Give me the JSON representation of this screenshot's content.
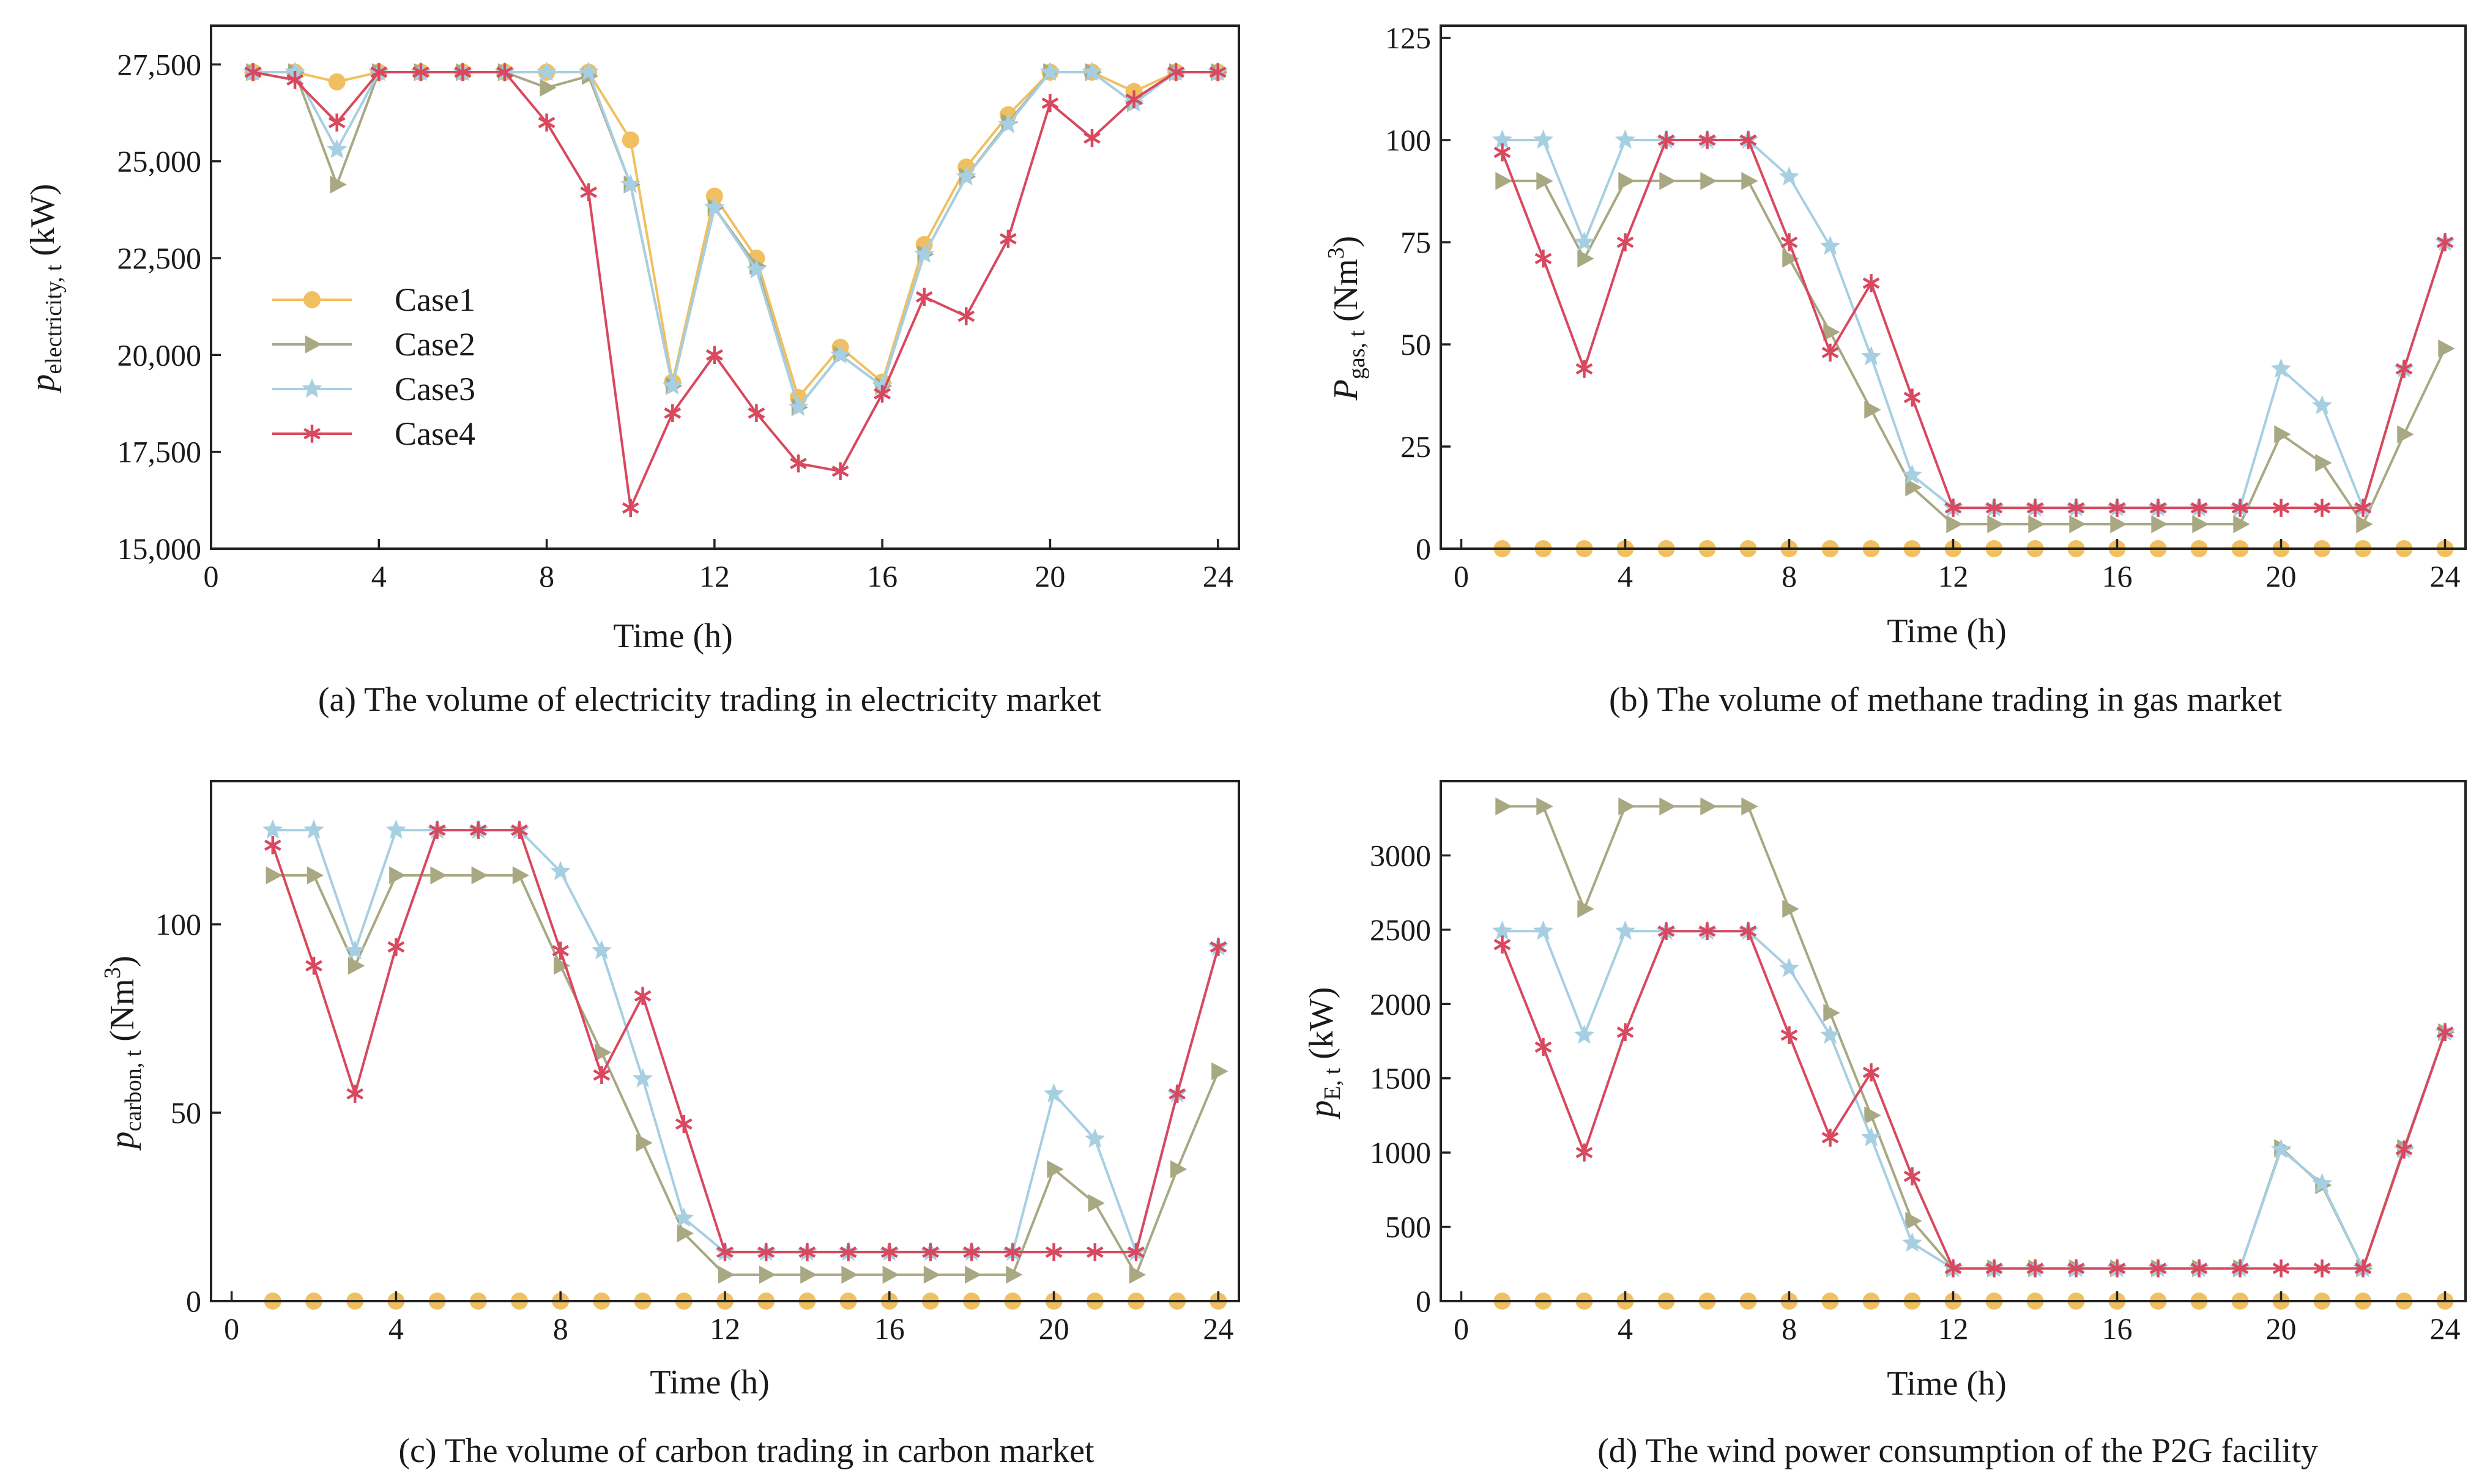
{
  "figure_domain": "Chart",
  "colors": {
    "Case1": "#f0c060",
    "Case2": "#a8a882",
    "Case3": "#a6cfe2",
    "Case4": "#d8485e"
  },
  "legend": [
    "Case1",
    "Case2",
    "Case3",
    "Case4"
  ],
  "chart_data": [
    {
      "id": "a",
      "type": "line",
      "caption": "(a)  The volume of electricity trading in electricity market",
      "xlabel": "Time  (h)",
      "ylabel": "p",
      "ylabel_sub": "electricity, t",
      "ylabel_unit": " (kW)",
      "xlim": [
        0,
        24.5
      ],
      "ylim": [
        15000,
        28500
      ],
      "xticks": [
        0,
        4,
        8,
        12,
        16,
        20,
        24
      ],
      "xtick_labels": [
        "0",
        "4",
        "8",
        "12",
        "16",
        "20",
        "24"
      ],
      "yticks": [
        15000,
        17500,
        20000,
        22500,
        25000,
        27500
      ],
      "ytick_labels": [
        "15,000",
        "17,500",
        "20,000",
        "22,500",
        "25,000",
        "27,500"
      ],
      "x": [
        1,
        2,
        3,
        4,
        5,
        6,
        7,
        8,
        9,
        10,
        11,
        12,
        13,
        14,
        15,
        16,
        17,
        18,
        19,
        20,
        21,
        22,
        23,
        24
      ],
      "series": [
        {
          "name": "Case1",
          "marker": "circle",
          "values": [
            27300,
            27300,
            27050,
            27300,
            27300,
            27300,
            27300,
            27300,
            27300,
            25550,
            19300,
            24100,
            22500,
            18900,
            20200,
            19300,
            22850,
            24850,
            26200,
            27300,
            27300,
            26800,
            27300,
            27300
          ]
        },
        {
          "name": "Case2",
          "marker": "triangle",
          "values": [
            27300,
            27300,
            24400,
            27300,
            27300,
            27300,
            27300,
            26900,
            27200,
            24400,
            19200,
            23800,
            22300,
            18650,
            20000,
            19200,
            22600,
            24600,
            26000,
            27300,
            27300,
            26500,
            27300,
            27300
          ]
        },
        {
          "name": "Case3",
          "marker": "star",
          "values": [
            27300,
            27300,
            25300,
            27300,
            27300,
            27300,
            27300,
            27300,
            27300,
            24400,
            19200,
            23800,
            22200,
            18650,
            20000,
            19200,
            22600,
            24600,
            25950,
            27300,
            27300,
            26500,
            27300,
            27300
          ]
        },
        {
          "name": "Case4",
          "marker": "asterisk",
          "values": [
            27300,
            27100,
            26000,
            27300,
            27300,
            27300,
            27300,
            26000,
            24200,
            16050,
            18500,
            20000,
            18500,
            17200,
            17000,
            19000,
            21500,
            21000,
            23000,
            26500,
            25600,
            26600,
            27300,
            27300
          ]
        }
      ]
    },
    {
      "id": "b",
      "type": "line",
      "caption": "(b)  The volume of methane trading in gas market",
      "xlabel": "Time  (h)",
      "ylabel": "P",
      "ylabel_sub": "gas, t",
      "ylabel_unit": " (Nm",
      "ylabel_sup": "3",
      "ylabel_close": ")",
      "xlim": [
        -0.5,
        24.5
      ],
      "ylim": [
        0,
        128
      ],
      "xticks": [
        0,
        4,
        8,
        12,
        16,
        20,
        24
      ],
      "xtick_labels": [
        "0",
        "4",
        "8",
        "12",
        "16",
        "20",
        "24"
      ],
      "yticks": [
        0,
        25,
        50,
        75,
        100,
        125
      ],
      "ytick_labels": [
        "0",
        "25",
        "50",
        "75",
        "100",
        "125"
      ],
      "x": [
        1,
        2,
        3,
        4,
        5,
        6,
        7,
        8,
        9,
        10,
        11,
        12,
        13,
        14,
        15,
        16,
        17,
        18,
        19,
        20,
        21,
        22,
        23,
        24
      ],
      "series": [
        {
          "name": "Case1",
          "marker": "circle",
          "values": [
            0,
            0,
            0,
            0,
            0,
            0,
            0,
            0,
            0,
            0,
            0,
            0,
            0,
            0,
            0,
            0,
            0,
            0,
            0,
            0,
            0,
            0,
            0,
            0
          ]
        },
        {
          "name": "Case2",
          "marker": "triangle",
          "values": [
            90,
            90,
            71,
            90,
            90,
            90,
            90,
            71,
            53,
            34,
            15,
            6,
            6,
            6,
            6,
            6,
            6,
            6,
            6,
            28,
            21,
            6,
            28,
            49
          ]
        },
        {
          "name": "Case3",
          "marker": "star",
          "values": [
            100,
            100,
            75,
            100,
            100,
            100,
            100,
            91,
            74,
            47,
            18,
            10,
            10,
            10,
            10,
            10,
            10,
            10,
            10,
            44,
            35,
            10,
            44,
            75
          ]
        },
        {
          "name": "Case4",
          "marker": "asterisk",
          "values": [
            97,
            71,
            44,
            75,
            100,
            100,
            100,
            75,
            48,
            65,
            37,
            10,
            10,
            10,
            10,
            10,
            10,
            10,
            10,
            10,
            10,
            10,
            44,
            75
          ]
        }
      ]
    },
    {
      "id": "c",
      "type": "line",
      "caption": "(c)       The volume of carbon trading in carbon market",
      "xlabel": "Time  (h)",
      "ylabel": "p",
      "ylabel_sub": "carbon, t",
      "ylabel_unit": " (Nm",
      "ylabel_sup": "3",
      "ylabel_close": ")",
      "xlim": [
        -0.5,
        24.5
      ],
      "ylim": [
        0,
        138
      ],
      "xticks": [
        0,
        4,
        8,
        12,
        16,
        20,
        24
      ],
      "xtick_labels": [
        "0",
        "4",
        "8",
        "12",
        "16",
        "20",
        "24"
      ],
      "yticks": [
        0,
        50,
        100
      ],
      "ytick_labels": [
        "0",
        "50",
        "100"
      ],
      "x": [
        1,
        2,
        3,
        4,
        5,
        6,
        7,
        8,
        9,
        10,
        11,
        12,
        13,
        14,
        15,
        16,
        17,
        18,
        19,
        20,
        21,
        22,
        23,
        24
      ],
      "series": [
        {
          "name": "Case1",
          "marker": "circle",
          "values": [
            0,
            0,
            0,
            0,
            0,
            0,
            0,
            0,
            0,
            0,
            0,
            0,
            0,
            0,
            0,
            0,
            0,
            0,
            0,
            0,
            0,
            0,
            0,
            0
          ]
        },
        {
          "name": "Case2",
          "marker": "triangle",
          "values": [
            113,
            113,
            89,
            113,
            113,
            113,
            113,
            89,
            66,
            42,
            18,
            7,
            7,
            7,
            7,
            7,
            7,
            7,
            7,
            35,
            26,
            7,
            35,
            61
          ]
        },
        {
          "name": "Case3",
          "marker": "star",
          "values": [
            125,
            125,
            93,
            125,
            125,
            125,
            125,
            114,
            93,
            59,
            22,
            13,
            13,
            13,
            13,
            13,
            13,
            13,
            13,
            55,
            43,
            13,
            55,
            94
          ]
        },
        {
          "name": "Case4",
          "marker": "asterisk",
          "values": [
            121,
            89,
            55,
            94,
            125,
            125,
            125,
            93,
            60,
            81,
            47,
            13,
            13,
            13,
            13,
            13,
            13,
            13,
            13,
            13,
            13,
            13,
            55,
            94
          ]
        }
      ]
    },
    {
      "id": "d",
      "type": "line",
      "caption": "(d)  The wind power consumption of the P2G facility",
      "xlabel": "Time  (h)",
      "ylabel": "p",
      "ylabel_sub": "E, t",
      "ylabel_unit": " (kW)",
      "xlim": [
        -0.5,
        24.5
      ],
      "ylim": [
        0,
        3500
      ],
      "xticks": [
        0,
        4,
        8,
        12,
        16,
        20,
        24
      ],
      "xtick_labels": [
        "0",
        "4",
        "8",
        "12",
        "16",
        "20",
        "24"
      ],
      "yticks": [
        0,
        500,
        1000,
        1500,
        2000,
        2500,
        3000
      ],
      "ytick_labels": [
        "0",
        "500",
        "1000",
        "1500",
        "2000",
        "2500",
        "3000"
      ],
      "x": [
        1,
        2,
        3,
        4,
        5,
        6,
        7,
        8,
        9,
        10,
        11,
        12,
        13,
        14,
        15,
        16,
        17,
        18,
        19,
        20,
        21,
        22,
        23,
        24
      ],
      "series": [
        {
          "name": "Case1",
          "marker": "circle",
          "values": [
            0,
            0,
            0,
            0,
            0,
            0,
            0,
            0,
            0,
            0,
            0,
            0,
            0,
            0,
            0,
            0,
            0,
            0,
            0,
            0,
            0,
            0,
            0,
            0
          ]
        },
        {
          "name": "Case2",
          "marker": "triangle",
          "values": [
            3330,
            3330,
            2640,
            3330,
            3330,
            3330,
            3330,
            2640,
            1940,
            1250,
            540,
            220,
            220,
            220,
            220,
            220,
            220,
            220,
            220,
            1030,
            780,
            220,
            1030,
            1810
          ]
        },
        {
          "name": "Case3",
          "marker": "star",
          "values": [
            2490,
            2490,
            1790,
            2490,
            2490,
            2490,
            2490,
            2240,
            1790,
            1100,
            390,
            220,
            220,
            220,
            220,
            220,
            220,
            220,
            220,
            1020,
            790,
            220,
            1020,
            1810
          ]
        },
        {
          "name": "Case4",
          "marker": "asterisk",
          "values": [
            2400,
            1710,
            1000,
            1810,
            2490,
            2490,
            2490,
            1790,
            1100,
            1540,
            840,
            220,
            220,
            220,
            220,
            220,
            220,
            220,
            220,
            220,
            220,
            220,
            1020,
            1810
          ]
        }
      ]
    }
  ]
}
